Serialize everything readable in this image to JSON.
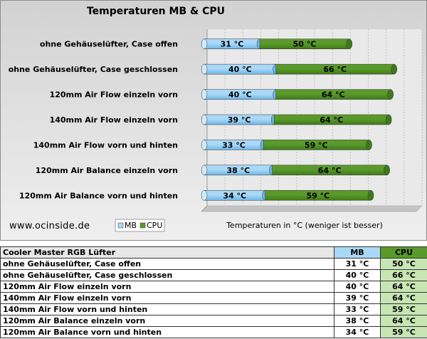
{
  "chart_data": {
    "type": "bar",
    "orientation": "horizontal",
    "stacked": true,
    "title": "Temperaturen MB & CPU",
    "xlabel": "Temperaturen in °C (weniger ist besser)",
    "categories": [
      "ohne Gehäuselüfter, Case offen",
      "ohne Gehäuselüfter, Case geschlossen",
      "120mm Air Flow einzeln vorn",
      "140mm Air Flow einzeln vorn",
      "140mm Air Flow vorn und hinten",
      "120mm Air Balance einzeln vorn",
      "120mm Air Balance vorn und hinten"
    ],
    "series": [
      {
        "name": "MB",
        "values": [
          31,
          40,
          40,
          39,
          33,
          38,
          34
        ],
        "labels": [
          "31 °C",
          "40 °C",
          "40 °C",
          "39 °C",
          "33 °C",
          "38 °C",
          "34 °C"
        ],
        "color": "#aad9f7"
      },
      {
        "name": "CPU",
        "values": [
          50,
          66,
          64,
          64,
          59,
          64,
          59
        ],
        "labels": [
          "50 °C",
          "66 °C",
          "64 °C",
          "64 °C",
          "59 °C",
          "64 °C",
          "59 °C"
        ],
        "color": "#5a9a2a"
      }
    ],
    "xlim": [
      0,
      120
    ],
    "grid": true,
    "legend": "bottom-left",
    "website": "www.ocinside.de"
  },
  "table": {
    "header": {
      "name": "Cooler Master RGB Lüfter",
      "mb": "MB",
      "cpu": "CPU"
    },
    "rows": [
      {
        "name": "ohne Gehäuselüfter, Case offen",
        "mb": "31 °C",
        "cpu": "50 °C"
      },
      {
        "name": "ohne Gehäuselüfter, Case geschlossen",
        "mb": "40 °C",
        "cpu": "66 °C"
      },
      {
        "name": "120mm Air Flow einzeln vorn",
        "mb": "40 °C",
        "cpu": "64 °C"
      },
      {
        "name": "140mm Air Flow einzeln vorn",
        "mb": "39 °C",
        "cpu": "64 °C"
      },
      {
        "name": "140mm Air Flow vorn und hinten",
        "mb": "33 °C",
        "cpu": "59 °C"
      },
      {
        "name": "120mm Air Balance einzeln vorn",
        "mb": "38 °C",
        "cpu": "64 °C"
      },
      {
        "name": "120mm Air Balance vorn und hinten",
        "mb": "34 °C",
        "cpu": "59 °C"
      }
    ]
  }
}
